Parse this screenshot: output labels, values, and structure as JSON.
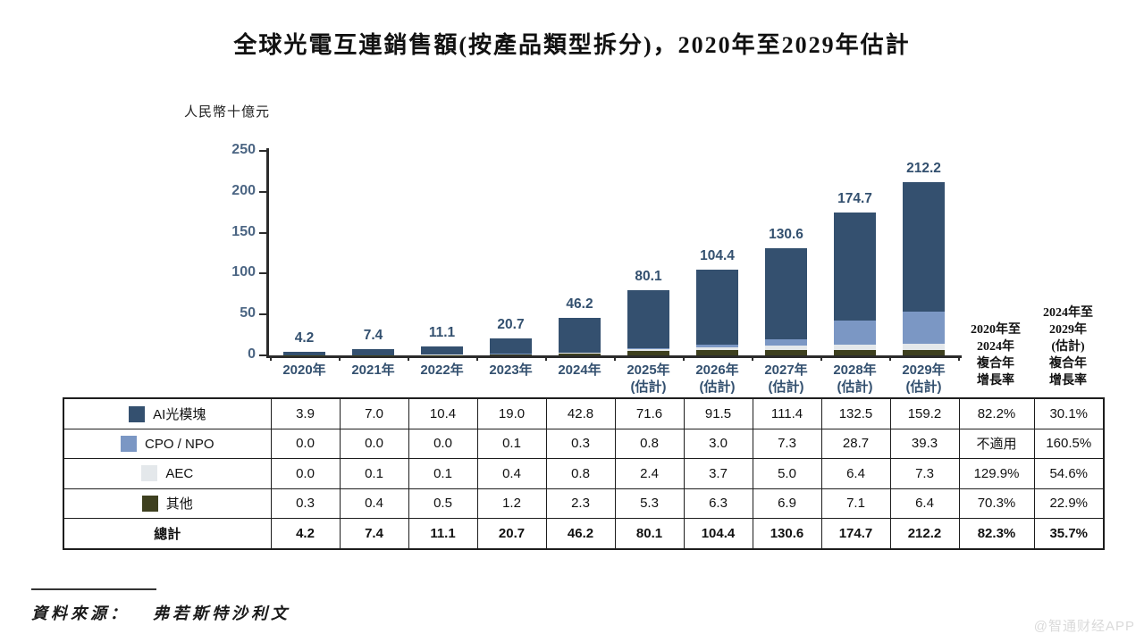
{
  "title": "全球光電互連銷售額(按產品類型拆分)，2020年至2029年估計",
  "unit_label": "人民幣十億元",
  "watermark": "@智通财经APP",
  "source": {
    "label": "資料來源：",
    "value": "弗若斯特沙利文"
  },
  "cagr_headers": [
    {
      "lines": [
        "2020年至",
        "2024年",
        "複合年",
        "增長率"
      ]
    },
    {
      "lines": [
        "2024年至",
        "2029年",
        "(估計)",
        "複合年",
        "增長率"
      ]
    }
  ],
  "colors": {
    "axis_tick_labels": "#4b6583",
    "bar_value_labels": "#33506f",
    "x_axis_labels": "#33506f",
    "axis_line": "#2b2b2b"
  },
  "chart_data": {
    "type": "bar",
    "subtype": "stacked",
    "title": "全球光電互連銷售額(按產品類型拆分)，2020年至2029年估計",
    "ylabel": "人民幣十億元",
    "xlabel": "",
    "ylim": [
      0,
      250
    ],
    "y_ticks": [
      0,
      50,
      100,
      150,
      200,
      250
    ],
    "grid": "off",
    "legend_position": "table-left",
    "categories": [
      "2020年",
      "2021年",
      "2022年",
      "2023年",
      "2024年",
      "2025年",
      "2026年",
      "2027年",
      "2028年",
      "2029年"
    ],
    "estimate_note": "(估計)",
    "estimate_from_index": 5,
    "series": [
      {
        "name": "AI光模塊",
        "color": "#34506f",
        "values": [
          3.9,
          7.0,
          10.4,
          19.0,
          42.8,
          71.6,
          91.5,
          111.4,
          132.5,
          159.2
        ],
        "cagr": [
          "82.2%",
          "30.1%"
        ]
      },
      {
        "name": "CPO / NPO",
        "color": "#7b97c4",
        "values": [
          0.0,
          0.0,
          0.0,
          0.1,
          0.3,
          0.8,
          3.0,
          7.3,
          28.7,
          39.3
        ],
        "cagr": [
          "不適用",
          "160.5%"
        ]
      },
      {
        "name": "AEC",
        "color": "#e4e8eb",
        "values": [
          0.0,
          0.1,
          0.1,
          0.4,
          0.8,
          2.4,
          3.7,
          5.0,
          6.4,
          7.3
        ],
        "cagr": [
          "129.9%",
          "54.6%"
        ]
      },
      {
        "name": "其他",
        "color": "#3e401f",
        "values": [
          0.3,
          0.4,
          0.5,
          1.2,
          2.3,
          5.3,
          6.3,
          6.9,
          7.1,
          6.4
        ],
        "cagr": [
          "70.3%",
          "22.9%"
        ]
      }
    ],
    "totals_label": "總計",
    "totals": [
      4.2,
      7.4,
      11.1,
      20.7,
      46.2,
      80.1,
      104.4,
      130.6,
      174.7,
      212.2
    ],
    "totals_cagr": [
      "82.3%",
      "35.7%"
    ]
  }
}
